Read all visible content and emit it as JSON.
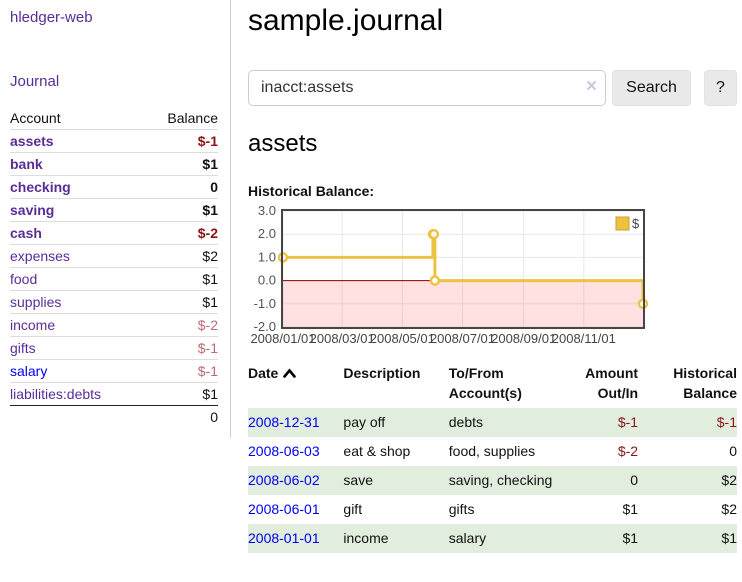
{
  "app": {
    "title": "hledger-web"
  },
  "sidebar": {
    "nav": [
      {
        "label": "Journal"
      }
    ],
    "accounts_table": {
      "headers": [
        "Account",
        "Balance"
      ],
      "rows": [
        {
          "account": "assets",
          "indent": 1,
          "bold": true,
          "balance": "$-1",
          "negative": true,
          "link_color": "purple"
        },
        {
          "account": "bank",
          "indent": 2,
          "bold": true,
          "balance": "$1",
          "negative": false,
          "link_color": "purple"
        },
        {
          "account": "checking",
          "indent": 3,
          "bold": true,
          "balance": "0",
          "negative": false,
          "link_color": "purple"
        },
        {
          "account": "saving",
          "indent": 3,
          "bold": true,
          "balance": "$1",
          "negative": false,
          "link_color": "purple"
        },
        {
          "account": "cash",
          "indent": 2,
          "bold": true,
          "balance": "$-2",
          "negative": true,
          "link_color": "purple"
        },
        {
          "account": "expenses",
          "indent": 1,
          "bold": false,
          "balance": "$2",
          "negative": false,
          "link_color": "purple"
        },
        {
          "account": "food",
          "indent": 2,
          "bold": false,
          "balance": "$1",
          "negative": false,
          "link_color": "purple"
        },
        {
          "account": "supplies",
          "indent": 2,
          "bold": false,
          "balance": "$1",
          "negative": false,
          "link_color": "purple"
        },
        {
          "account": "income",
          "indent": 1,
          "bold": false,
          "balance": "$-2",
          "negative": true,
          "link_color": "purple"
        },
        {
          "account": "gifts",
          "indent": 2,
          "bold": false,
          "balance": "$-1",
          "negative": true,
          "link_color": "purple"
        },
        {
          "account": "salary",
          "indent": 2,
          "bold": false,
          "balance": "$-1",
          "negative": true,
          "link_color": "blue"
        },
        {
          "account": "liabilities:debts",
          "indent": 1,
          "bold": false,
          "balance": "$1",
          "negative": false,
          "link_color": "purple"
        }
      ],
      "total": "0"
    }
  },
  "header": {
    "title": "sample.journal"
  },
  "search": {
    "value": "inacct:assets",
    "clear_icon": "×",
    "button_label": "Search",
    "help_label": "?"
  },
  "account_page": {
    "title": "assets",
    "chart_label": "Historical Balance:"
  },
  "chart_data": {
    "type": "line",
    "title": "Historical Balance",
    "step": true,
    "series": [
      {
        "name": "$",
        "color": "#edc240",
        "points": [
          {
            "date": "2008-01-01",
            "value": 1
          },
          {
            "date": "2008-06-01",
            "value": 2
          },
          {
            "date": "2008-06-02",
            "value": 2
          },
          {
            "date": "2008-06-03",
            "value": 0
          },
          {
            "date": "2008-12-31",
            "value": -1
          }
        ]
      }
    ],
    "x_range": [
      "2008-01-01",
      "2008-12-31"
    ],
    "x_ticks": [
      "2008/01/01",
      "2008/03/01",
      "2008/05/01",
      "2008/07/01",
      "2008/09/01",
      "2008/11/01"
    ],
    "y_ticks": [
      3.0,
      2.0,
      1.0,
      0.0,
      -1.0,
      -2.0
    ],
    "ylim": [
      -2,
      3
    ],
    "grid": true,
    "legend": {
      "label": "$",
      "position": "top-right"
    },
    "negative_region_fill": "rgba(255,70,70,0.16)",
    "zero_line_color": "#8b0000",
    "border_color": "#454545",
    "grid_color": "#e7e7e7",
    "tick_color": "#545454"
  },
  "transactions": {
    "headers": {
      "date": "Date",
      "description": "Description",
      "accounts": "To/From Account(s)",
      "amount": "Amount Out/In",
      "balance": "Historical Balance"
    },
    "rows": [
      {
        "date": "2008-12-31",
        "description": "pay off",
        "accounts": "debts",
        "amount": "$-1",
        "amount_negative": true,
        "balance": "$-1",
        "balance_negative": true
      },
      {
        "date": "2008-06-03",
        "description": "eat & shop",
        "accounts": "food, supplies",
        "amount": "$-2",
        "amount_negative": true,
        "balance": "0",
        "balance_negative": false
      },
      {
        "date": "2008-06-02",
        "description": "save",
        "accounts": "saving, checking",
        "amount": "0",
        "amount_negative": false,
        "balance": "$2",
        "balance_negative": false
      },
      {
        "date": "2008-06-01",
        "description": "gift",
        "accounts": "gifts",
        "amount": "$1",
        "amount_negative": false,
        "balance": "$2",
        "balance_negative": false
      },
      {
        "date": "2008-01-01",
        "description": "income",
        "accounts": "salary",
        "amount": "$1",
        "amount_negative": false,
        "balance": "$1",
        "balance_negative": false
      }
    ]
  }
}
